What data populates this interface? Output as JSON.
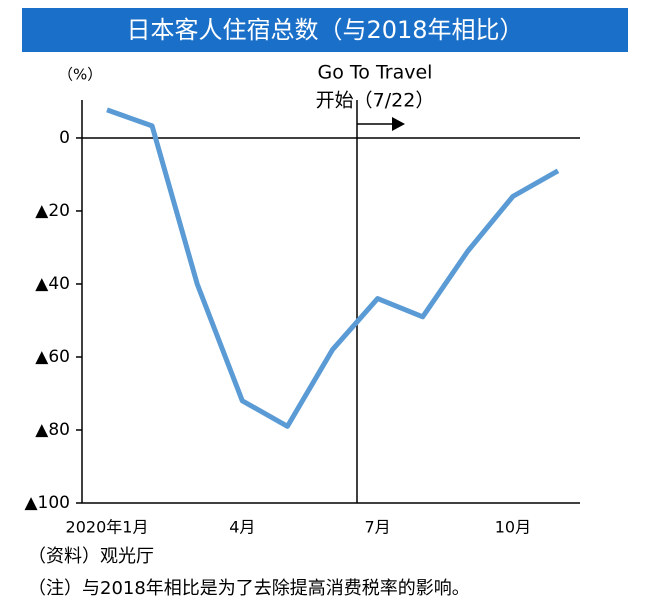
{
  "chart_data": {
    "type": "line",
    "title": "日本客人住宿总数（与2018年相比）",
    "y_unit": "（%）",
    "annotation": [
      "Go To Travel",
      "开始（7/22）"
    ],
    "notes": [
      "（资料）观光厅",
      "（注）与2018年相比是为了去除提高消费税率的影响。"
    ],
    "categories": [
      "2020年1月",
      null,
      null,
      "4月",
      null,
      null,
      "7月",
      null,
      null,
      "10月",
      null
    ],
    "series": [
      {
        "name": "日本客人住宿总数",
        "color": "#5b9bd5",
        "values": [
          7.7,
          3.3,
          -40,
          -72,
          -79,
          -58,
          -44,
          -49,
          -31,
          -16,
          -9
        ]
      }
    ],
    "ylim": [
      -100,
      10.4
    ],
    "yticks": [
      0,
      {
        "value": -20,
        "label": "▲20"
      },
      {
        "value": -40,
        "label": "▲40"
      },
      {
        "value": -60,
        "label": "▲60"
      },
      {
        "value": -80,
        "label": "▲80"
      },
      {
        "value": -100,
        "label": "▲100"
      }
    ],
    "legend": false,
    "grid": false
  }
}
